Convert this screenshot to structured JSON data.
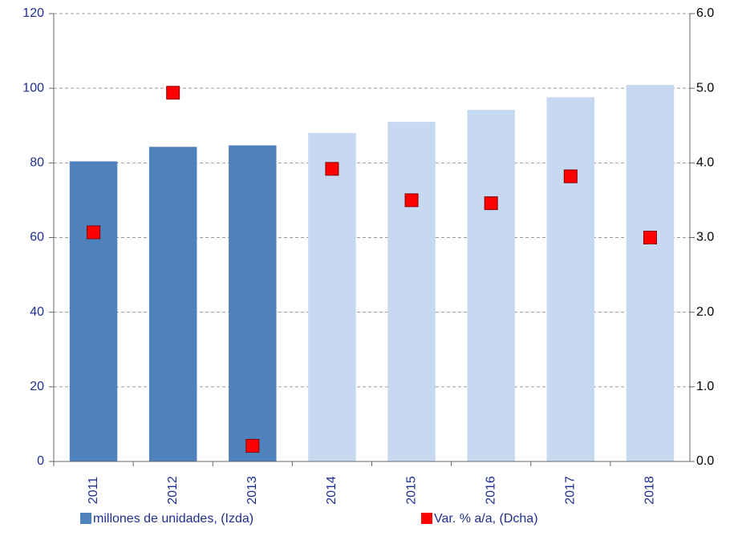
{
  "chart_data": {
    "type": "bar+scatter",
    "categories": [
      "2011",
      "2012",
      "2013",
      "2014",
      "2015",
      "2016",
      "2017",
      "2018"
    ],
    "series": [
      {
        "name": "millones de unidades, (Izda)",
        "type": "bar",
        "color": "#4f81bd",
        "colors": [
          "#4f81bd",
          "#4f81bd",
          "#4f81bd",
          "#c6d9f0",
          "#c6d9f0",
          "#c6d9f0",
          "#c6d9f0",
          "#c6d9f0"
        ],
        "values": [
          80.4,
          84.3,
          84.7,
          88.0,
          91.0,
          94.2,
          97.6,
          100.9
        ]
      },
      {
        "name": "Var. % a/a, (Dcha)",
        "type": "scatter",
        "axis": "y2",
        "color": "#ff0000",
        "values": [
          3.07,
          4.94,
          0.21,
          3.92,
          3.5,
          3.46,
          3.82,
          3.0
        ]
      }
    ],
    "ylim": [
      0,
      120
    ],
    "yticks": [
      0,
      20,
      40,
      60,
      80,
      100,
      120
    ],
    "y2lim": [
      0,
      6
    ],
    "y2ticks": [
      {
        "value": 0,
        "label": "0.0"
      },
      {
        "value": 1,
        "label": "1.0"
      },
      {
        "value": 2,
        "label": "2.0"
      },
      {
        "value": 3,
        "label": "3.0"
      },
      {
        "value": 4,
        "label": "4.0"
      },
      {
        "value": 5,
        "label": "5.0"
      },
      {
        "value": 6,
        "label": "6.0"
      }
    ],
    "grid": true,
    "legend": "bottom"
  }
}
